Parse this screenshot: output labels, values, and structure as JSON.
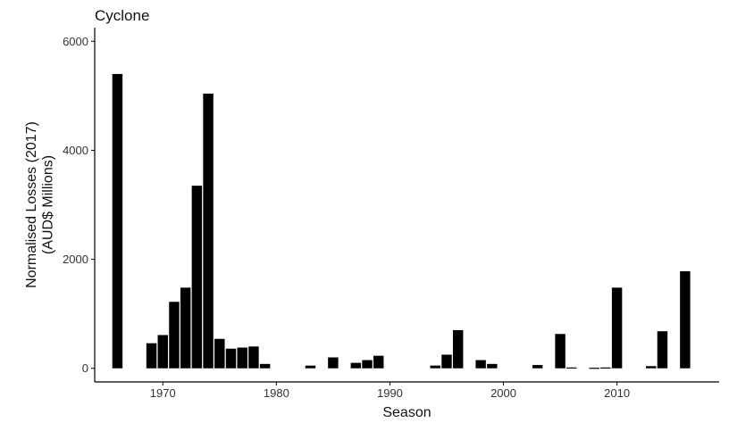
{
  "chart_data": {
    "type": "bar",
    "title": "Cyclone",
    "xlabel": "Season",
    "ylabel_lines": [
      "Normalised Losses (2017)",
      "(AUD$ Millions)"
    ],
    "xlim": [
      1964,
      2019
    ],
    "ylim": [
      -250,
      6250
    ],
    "x_ticks": [
      1970,
      1980,
      1990,
      2000,
      2010
    ],
    "y_ticks": [
      0,
      2000,
      4000,
      6000
    ],
    "grid": false,
    "bar_color": "#000000",
    "x": [
      1966,
      1969,
      1970,
      1971,
      1972,
      1973,
      1974,
      1975,
      1976,
      1977,
      1978,
      1979,
      1983,
      1985,
      1987,
      1988,
      1989,
      1994,
      1995,
      1996,
      1998,
      1999,
      2003,
      2005,
      2006,
      2008,
      2009,
      2010,
      2013,
      2014,
      2016
    ],
    "values": [
      5400,
      460,
      610,
      1220,
      1480,
      3350,
      5040,
      540,
      360,
      380,
      400,
      80,
      50,
      200,
      100,
      150,
      230,
      50,
      250,
      700,
      150,
      80,
      60,
      630,
      15,
      10,
      15,
      1480,
      40,
      680,
      1780
    ]
  }
}
